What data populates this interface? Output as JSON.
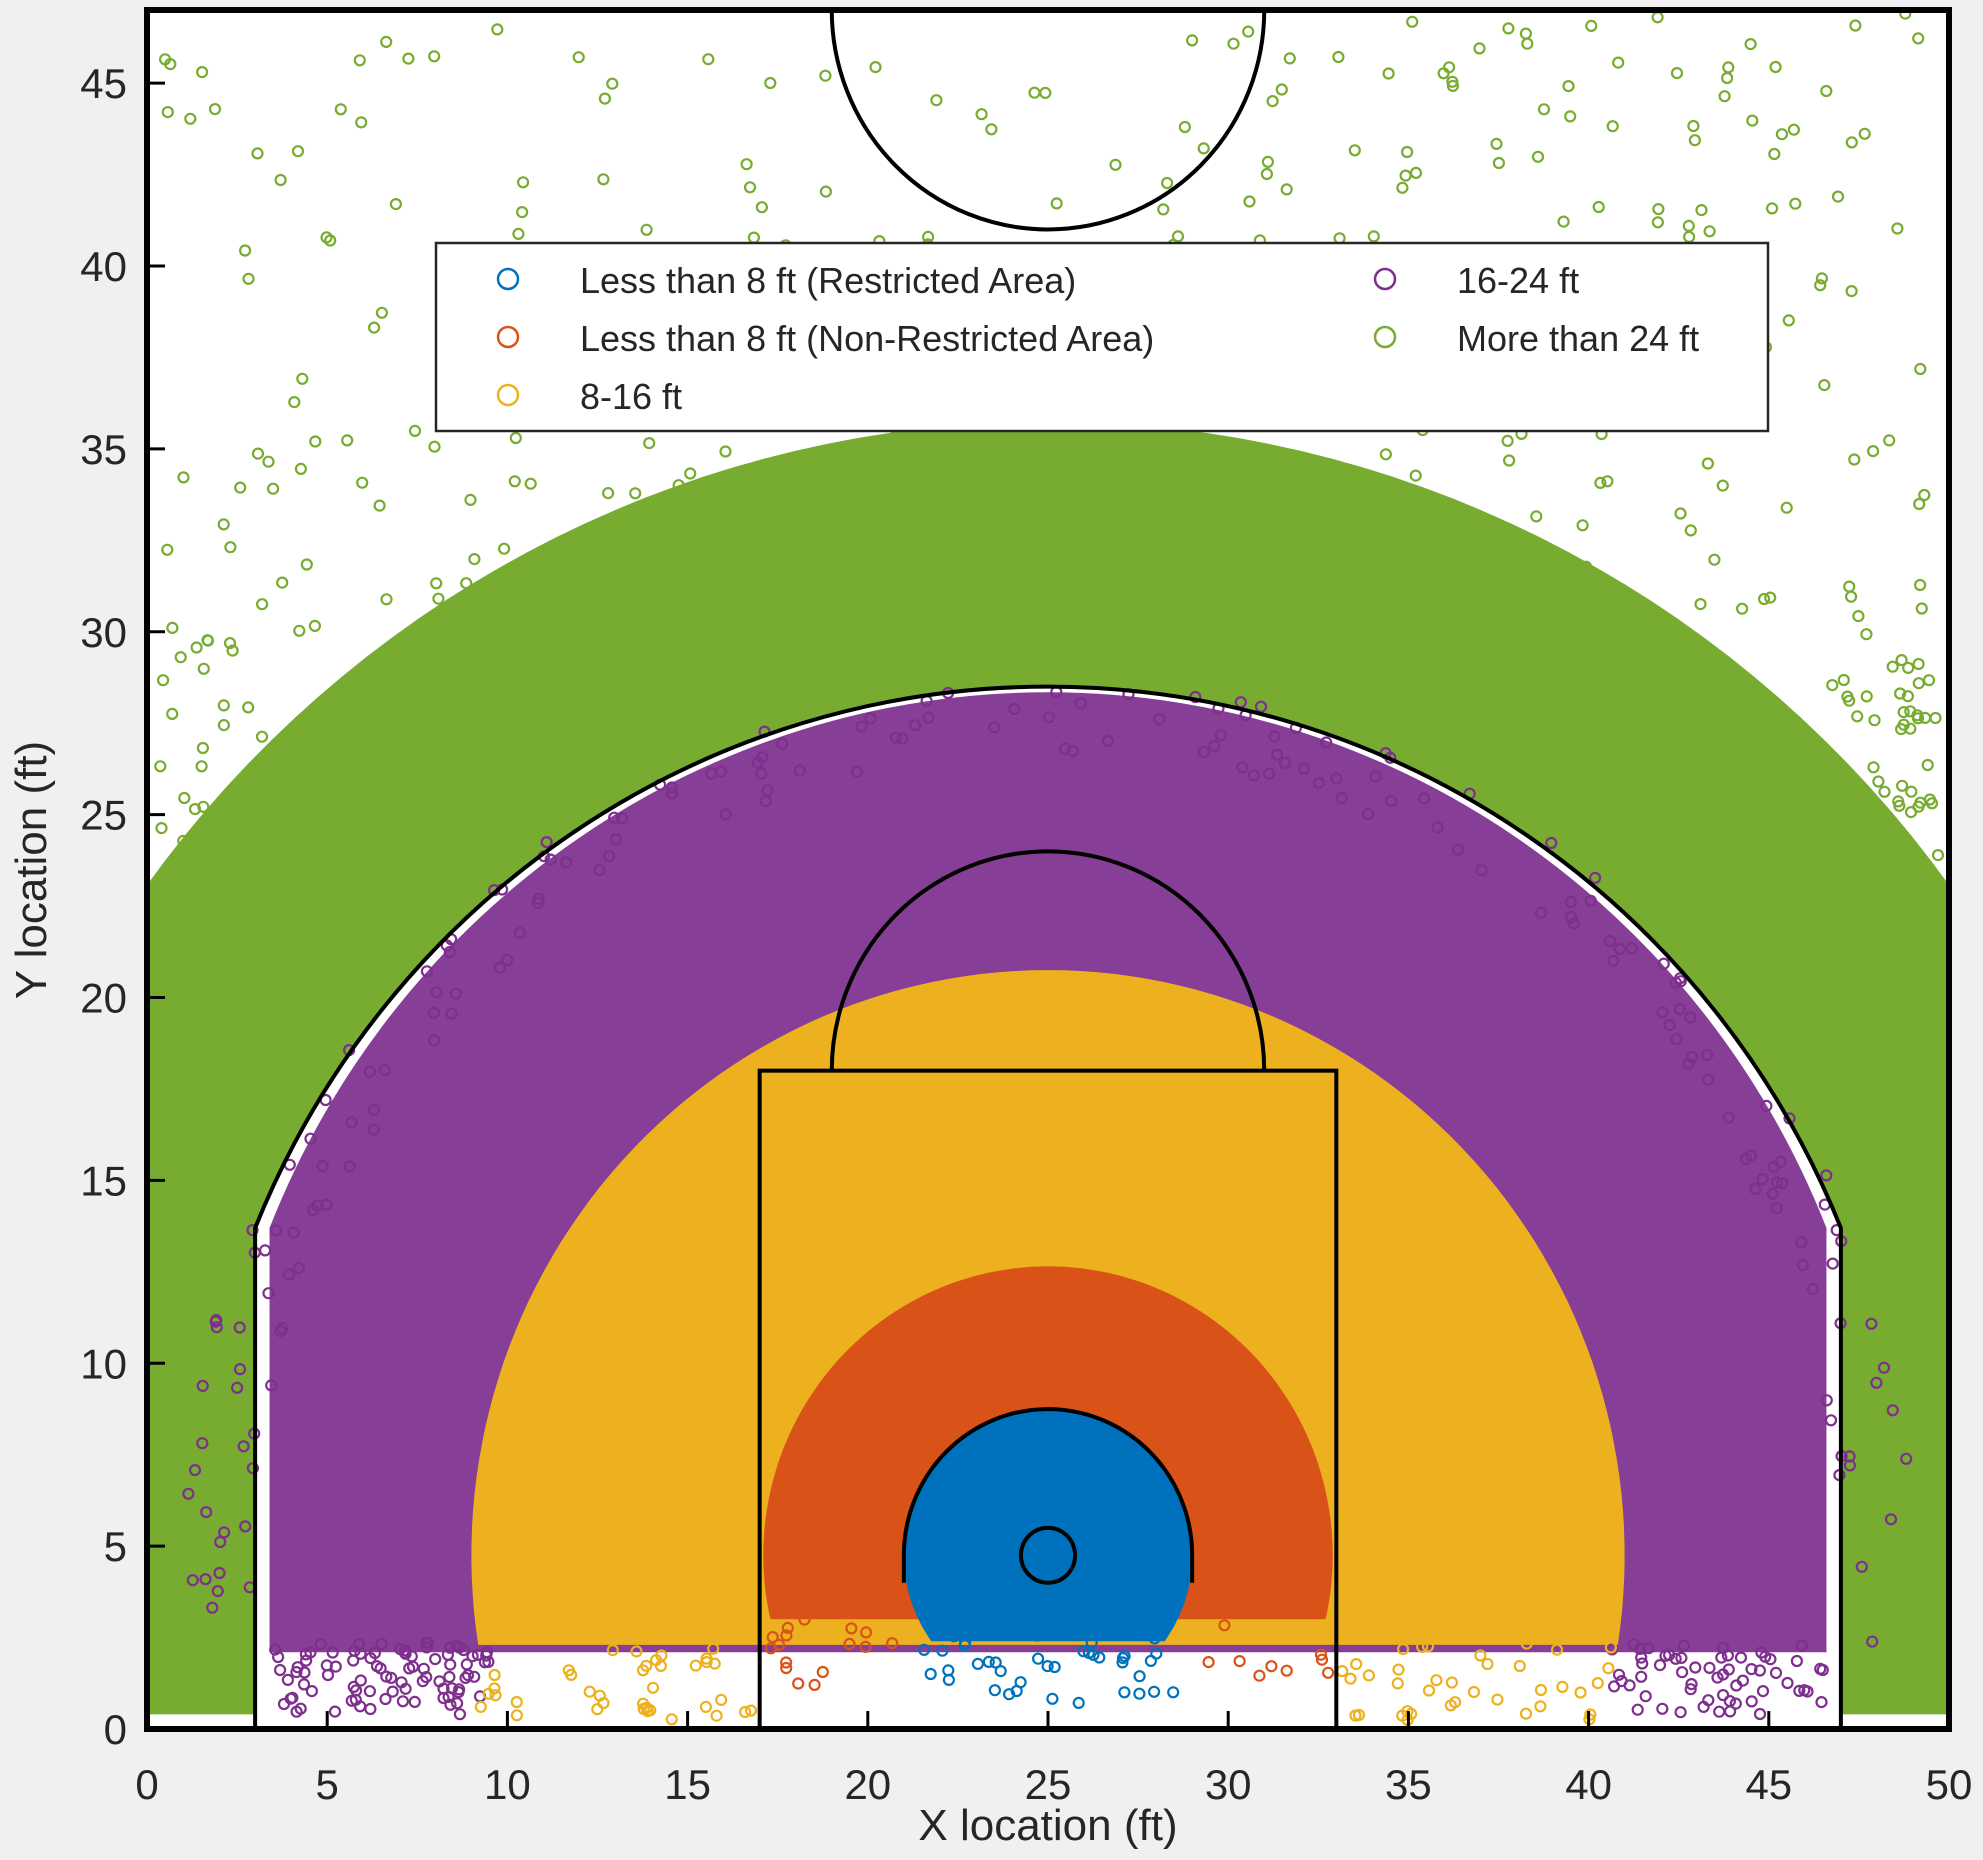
{
  "chart_data": {
    "type": "scatter",
    "title": "",
    "xlabel": "X location (ft)",
    "ylabel": "Y location (ft)",
    "xlim": [
      0,
      50
    ],
    "ylim": [
      0,
      47
    ],
    "xticks": [
      0,
      5,
      10,
      15,
      20,
      25,
      30,
      35,
      40,
      45,
      50
    ],
    "yticks": [
      0,
      5,
      10,
      15,
      20,
      25,
      30,
      35,
      40,
      45
    ],
    "grid": false,
    "legend_position": "top-center",
    "marker": "open-circle",
    "series": [
      {
        "name": "Less than 8 ft (Restricted Area)",
        "color": "#0072BD",
        "distance_ft": [
          0,
          4
        ]
      },
      {
        "name": "Less than 8 ft (Non-Restricted Area)",
        "color": "#D95319",
        "distance_ft": [
          4,
          8
        ]
      },
      {
        "name": "8-16 ft",
        "color": "#EDB120",
        "distance_ft": [
          8,
          16
        ]
      },
      {
        "name": "16-24 ft",
        "color": "#7E2F8E",
        "distance_ft": [
          16,
          24
        ]
      },
      {
        "name": "More than 24 ft",
        "color": "#77AC30",
        "distance_ft": [
          24,
          47
        ]
      }
    ],
    "court": {
      "hoop": [
        25,
        4.75
      ],
      "hoop_radius": 0.75,
      "restricted_radius": 4,
      "key_x": [
        17,
        33
      ],
      "key_top": 18,
      "free_throw_circle_radius": 6,
      "three_point_radius": 23.75,
      "three_point_corner_x": [
        3,
        47
      ],
      "center_circle_radius": 6
    }
  }
}
